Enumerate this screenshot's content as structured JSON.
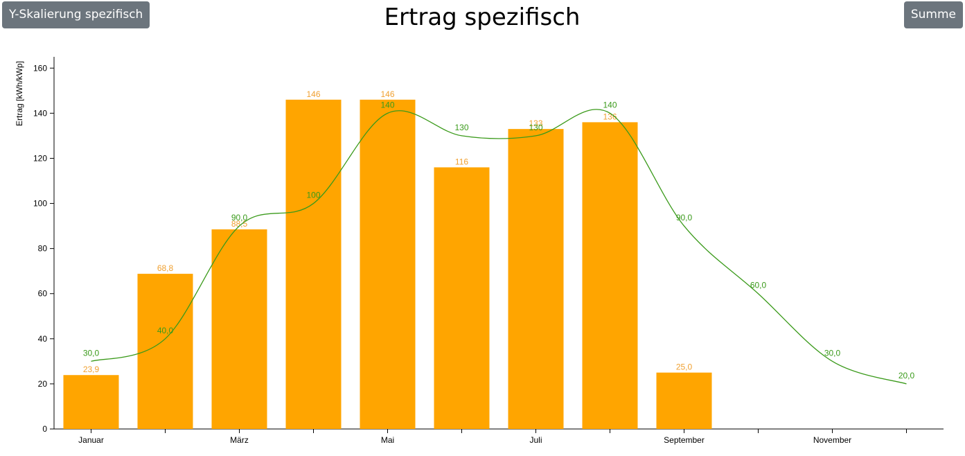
{
  "buttons": [
    "Y-Skalierung spezifisch",
    "Summe"
  ],
  "chart_data": {
    "type": "bar",
    "title": "Ertrag spezifisch",
    "y_label": "Ertrag [kWh/kWp]",
    "categories": [
      "Januar",
      null,
      "März",
      null,
      "Mai",
      null,
      "Juli",
      null,
      "September",
      null,
      "November",
      null
    ],
    "series": [
      {
        "type": "bar",
        "color": "#ffa500",
        "label_color": "#f0a030",
        "values": [
          23.9,
          68.8,
          88.5,
          146,
          146,
          116,
          133,
          136,
          25.0,
          null,
          null,
          null
        ],
        "value_labels": [
          "23,9",
          "68,8",
          "88,5",
          "146",
          "146",
          "116",
          "133",
          "136",
          "25,0",
          null,
          null,
          null
        ]
      },
      {
        "type": "line",
        "color": "#3a9a1a",
        "values": [
          30,
          40,
          90,
          100,
          140,
          130,
          130,
          140,
          90,
          60,
          30,
          20
        ],
        "value_labels": [
          "30,0",
          "40,0",
          "90,0",
          "100",
          "140",
          "130",
          "130",
          "140",
          "90,0",
          "60,0",
          "30,0",
          "20,0"
        ]
      }
    ],
    "ylim": [
      0,
      165
    ],
    "yticks": [
      0,
      20,
      40,
      60,
      80,
      100,
      120,
      140,
      160
    ]
  }
}
